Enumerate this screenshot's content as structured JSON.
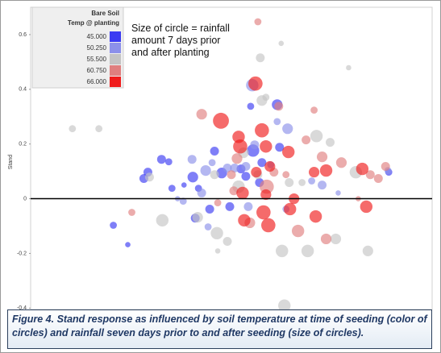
{
  "chart_data": {
    "type": "bubble",
    "ylabel": "Stand",
    "ylim": [
      -0.405,
      0.7
    ],
    "yticks": [
      0.6,
      0.4,
      0.2,
      0,
      -0.2,
      -0.4
    ],
    "xlim": [
      0,
      100
    ],
    "zero_line": true,
    "legend_title": [
      "Bare Soil",
      "Temp @ planting"
    ],
    "legend": "upper-left",
    "annotation": "Size of circle = rainfall amount 7 days prior and after planting",
    "caption": "Figure 4. Stand response as influenced by soil temperature at time of seeding (color of circles) and rainfall seven days prior to and after seeding (size of circles).",
    "series": [
      {
        "name": "45.000",
        "color": "#3b3bf2",
        "x": [
          61.4,
          54.8,
          32.6,
          34.4,
          28.2,
          29.2,
          40.4,
          41.8,
          45.8,
          47.6,
          52.4,
          55.4,
          62,
          41,
          35.2,
          20.6,
          24.2,
          57.6,
          57,
          49.6,
          44.6,
          89.2,
          53.6,
          38.2
        ],
        "values": [
          0.344,
          0.338,
          0.144,
          0.135,
          0.074,
          0.097,
          0.079,
          0.038,
          0.174,
          0.094,
          0.109,
          0.176,
          0.188,
          -0.071,
          0.038,
          -0.097,
          -0.168,
          0.132,
          0.059,
          -0.029,
          -0.038,
          0.097,
          0.082,
          0.05
        ],
        "sizes": [
          6,
          4,
          5,
          4,
          5,
          5,
          6,
          4,
          5,
          6,
          5,
          7,
          5,
          5,
          4,
          4,
          3,
          5,
          5,
          5,
          5,
          4,
          5,
          3
        ]
      },
      {
        "name": "50.250",
        "color": "#8c90ea",
        "x": [
          55.2,
          40.2,
          43.6,
          45.2,
          49,
          50.8,
          53.6,
          59.8,
          64,
          70,
          72.6,
          89,
          55.8,
          61.4,
          38,
          44.2,
          36.6,
          42.6,
          54.2,
          63.6,
          76.6
        ],
        "values": [
          0.415,
          0.144,
          0.103,
          0.132,
          0.112,
          0.112,
          0.118,
          0.124,
          0.256,
          0.065,
          0.05,
          0.103,
          0.197,
          0.282,
          -0.009,
          -0.103,
          0,
          0.021,
          -0.029,
          -0.038,
          0.021
        ],
        "sizes": [
          7,
          5,
          6,
          4,
          5,
          5,
          5,
          4,
          6,
          4,
          5,
          4,
          5,
          4,
          4,
          4,
          3,
          5,
          5,
          4,
          3
        ]
      },
      {
        "name": "55.500",
        "color": "#c4c4c4",
        "x": [
          62.4,
          57.2,
          79.2,
          10.4,
          17,
          29.6,
          32.8,
          41.6,
          53,
          57.6,
          58.6,
          71.2,
          46.4,
          49,
          51.8,
          56.6,
          64.4,
          62.6,
          69,
          76,
          81,
          84,
          63.2,
          45.8,
          67.6,
          74.6,
          46.6
        ],
        "values": [
          0.568,
          0.515,
          0.479,
          0.256,
          0.256,
          0.079,
          -0.079,
          -0.068,
          0.168,
          0.359,
          0.371,
          0.229,
          -0.126,
          -0.156,
          0.044,
          0.088,
          0.059,
          -0.191,
          -0.191,
          -0.147,
          0.097,
          -0.191,
          -0.391,
          0.088,
          0.059,
          0.206,
          -0.191
        ],
        "sizes": [
          3,
          5,
          3,
          4,
          4,
          5,
          7,
          6,
          6,
          6,
          4,
          7,
          7,
          5,
          7,
          5,
          5,
          7,
          7,
          6,
          7,
          6,
          7,
          5,
          4,
          5,
          3
        ]
      },
      {
        "name": "60.750",
        "color": "#e07f7f",
        "x": [
          56.6,
          25.2,
          51.4,
          58.8,
          60.6,
          68.6,
          72.6,
          77.4,
          84.6,
          86.6,
          88.4,
          66.6,
          46.6,
          50.6,
          63.6,
          54.6,
          73.6,
          81.6,
          70.6,
          42.6,
          61.8,
          50
        ],
        "values": [
          0.647,
          -0.05,
          0.147,
          0.044,
          0.097,
          0.215,
          0.153,
          0.132,
          0.088,
          0.074,
          0.118,
          -0.118,
          -0.015,
          0.029,
          0.088,
          -0.088,
          -0.147,
          0,
          0.324,
          0.309,
          0.338,
          0.088
        ],
        "sizes": [
          4,
          4,
          6,
          8,
          5,
          5,
          6,
          6,
          5,
          5,
          5,
          7,
          4,
          5,
          4,
          6,
          6,
          3,
          4,
          6,
          5,
          5
        ]
      },
      {
        "name": "66.000",
        "color": "#f01c1c",
        "x": [
          47.4,
          51.8,
          57.6,
          58.6,
          52.2,
          64.2,
          70.6,
          73.6,
          82.6,
          83.6,
          65.6,
          59.2,
          53.2,
          58,
          64.6,
          71,
          52.8,
          56.2,
          59.6,
          56,
          58.6
        ],
        "values": [
          0.285,
          0.226,
          0.25,
          0.191,
          0.191,
          0.171,
          0.097,
          0.103,
          0.109,
          -0.029,
          0,
          -0.097,
          -0.079,
          -0.05,
          -0.038,
          -0.065,
          0.021,
          0.097,
          0.118,
          0.421,
          0.015
        ],
        "sizes": [
          9,
          7,
          8,
          7,
          8,
          7,
          6,
          7,
          7,
          7,
          6,
          8,
          7,
          8,
          7,
          7,
          7,
          6,
          6,
          8,
          6
        ]
      }
    ]
  }
}
